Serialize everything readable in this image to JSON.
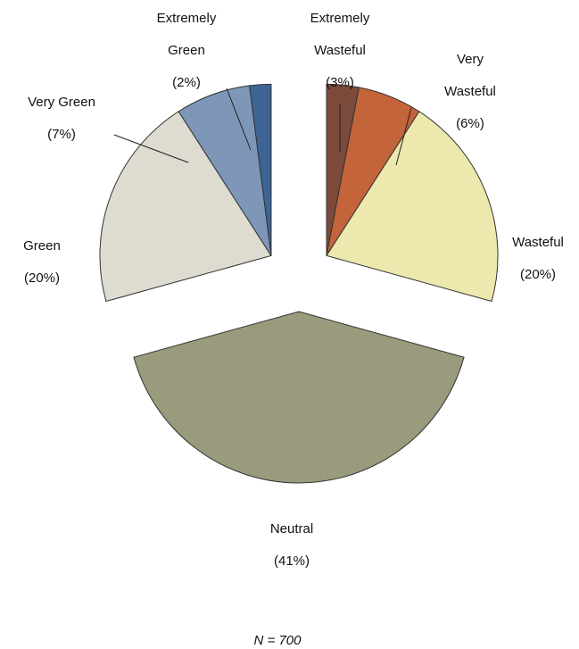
{
  "chart_data": {
    "type": "pie",
    "note": "N = 700",
    "slices": [
      {
        "name": "Extremely Wasteful",
        "value": 3,
        "label": "(3%)",
        "color": "#7b4a3a"
      },
      {
        "name": "Very Wasteful",
        "value": 6,
        "label": "(6%)",
        "color": "#c3643a"
      },
      {
        "name": "Wasteful",
        "value": 20,
        "label": "(20%)",
        "color": "#ede8ad"
      },
      {
        "name": "Neutral",
        "value": 41,
        "label": "(41%)",
        "color": "#999b7c"
      },
      {
        "name": "Green",
        "value": 20,
        "label": "(20%)",
        "color": "#dedcd0"
      },
      {
        "name": "Very Green",
        "value": 7,
        "label": "(7%)",
        "color": "#7e97b8"
      },
      {
        "name": "Extremely Green",
        "value": 2,
        "label": "(2%)",
        "color": "#3e6495"
      }
    ],
    "stroke_color": "#333333"
  }
}
